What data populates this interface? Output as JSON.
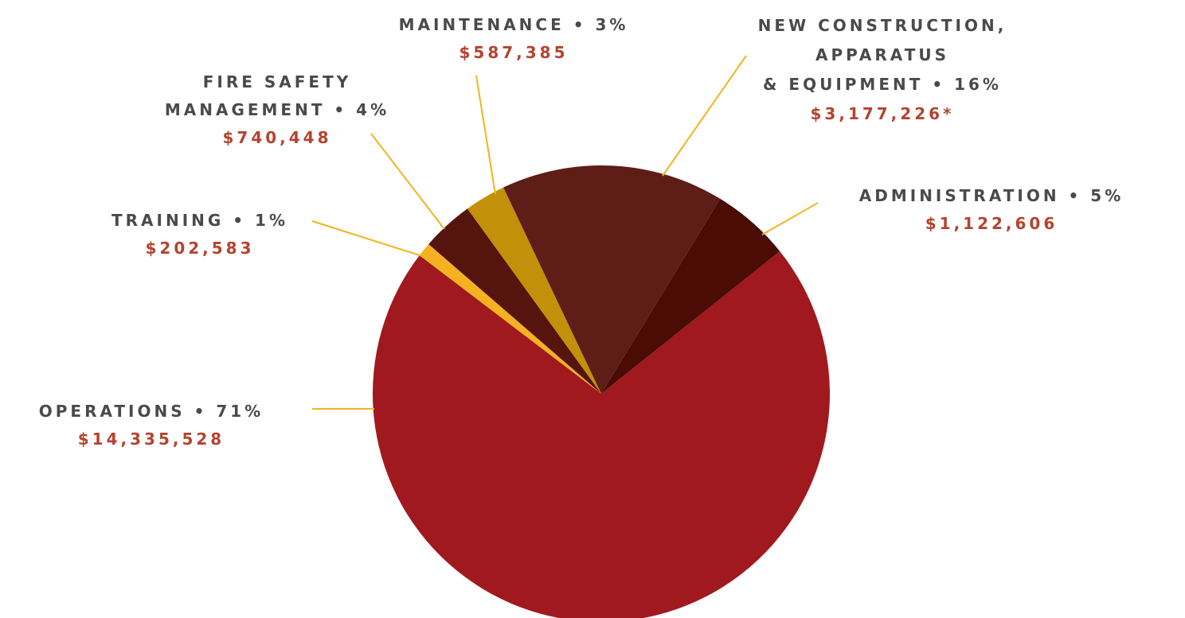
{
  "chart_data": {
    "type": "pie",
    "categories": [
      "OPERATIONS • 71%",
      "TRAINING • 1%",
      "FIRE SAFETY\nMANAGEMENT • 4%",
      "MAINTENANCE • 3%",
      "NEW CONSTRUCTION,\nAPPARATUS\n& EQUIPMENT • 16%",
      "ADMINISTRATION • 5%"
    ],
    "values": [
      14335528,
      202583,
      740448,
      587385,
      3177226,
      1122606
    ],
    "value_labels": [
      "$14,335,528",
      "$202,583",
      "$740,448",
      "$587,385",
      "$3,177,226*",
      "$1,122,606"
    ],
    "colors": [
      "#a0191f",
      "#f5b220",
      "#55140e",
      "#c29009",
      "#5e1d16",
      "#4a0c05"
    ]
  }
}
